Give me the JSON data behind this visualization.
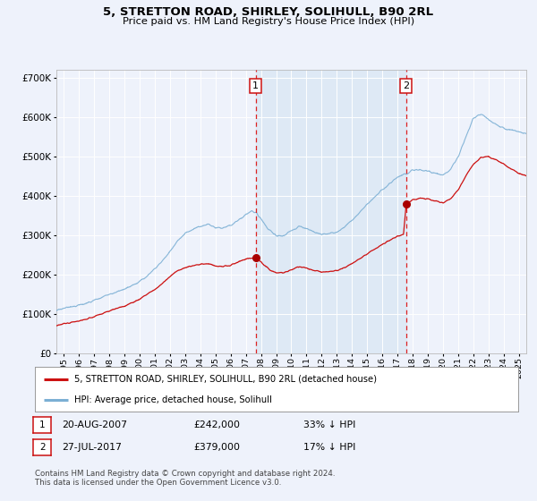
{
  "title": "5, STRETTON ROAD, SHIRLEY, SOLIHULL, B90 2RL",
  "subtitle": "Price paid vs. HM Land Registry's House Price Index (HPI)",
  "ylim": [
    0,
    720000
  ],
  "xlim_start": 1994.5,
  "xlim_end": 2025.5,
  "yticks": [
    0,
    100000,
    200000,
    300000,
    400000,
    500000,
    600000,
    700000
  ],
  "xtick_years": [
    1995,
    1996,
    1997,
    1998,
    1999,
    2000,
    2001,
    2002,
    2003,
    2004,
    2005,
    2006,
    2007,
    2008,
    2009,
    2010,
    2011,
    2012,
    2013,
    2014,
    2015,
    2016,
    2017,
    2018,
    2019,
    2020,
    2021,
    2022,
    2023,
    2024,
    2025
  ],
  "background_color": "#eef2fb",
  "plot_bg_color": "#eef2fb",
  "grid_color": "#ffffff",
  "hpi_color": "#7bafd4",
  "price_color": "#cc1111",
  "marker_color": "#aa0000",
  "vline_color": "#dd2222",
  "shade_color": "#dce8f5",
  "sale1_x": 2007.64,
  "sale1_y": 242000,
  "sale1_label": "1",
  "sale1_date": "20-AUG-2007",
  "sale1_price": "£242,000",
  "sale1_hpi": "33% ↓ HPI",
  "sale2_x": 2017.57,
  "sale2_y": 379000,
  "sale2_label": "2",
  "sale2_date": "27-JUL-2017",
  "sale2_price": "£379,000",
  "sale2_hpi": "17% ↓ HPI",
  "legend_line1": "5, STRETTON ROAD, SHIRLEY, SOLIHULL, B90 2RL (detached house)",
  "legend_line2": "HPI: Average price, detached house, Solihull",
  "copyright_text": "Contains HM Land Registry data © Crown copyright and database right 2024.\nThis data is licensed under the Open Government Licence v3.0."
}
